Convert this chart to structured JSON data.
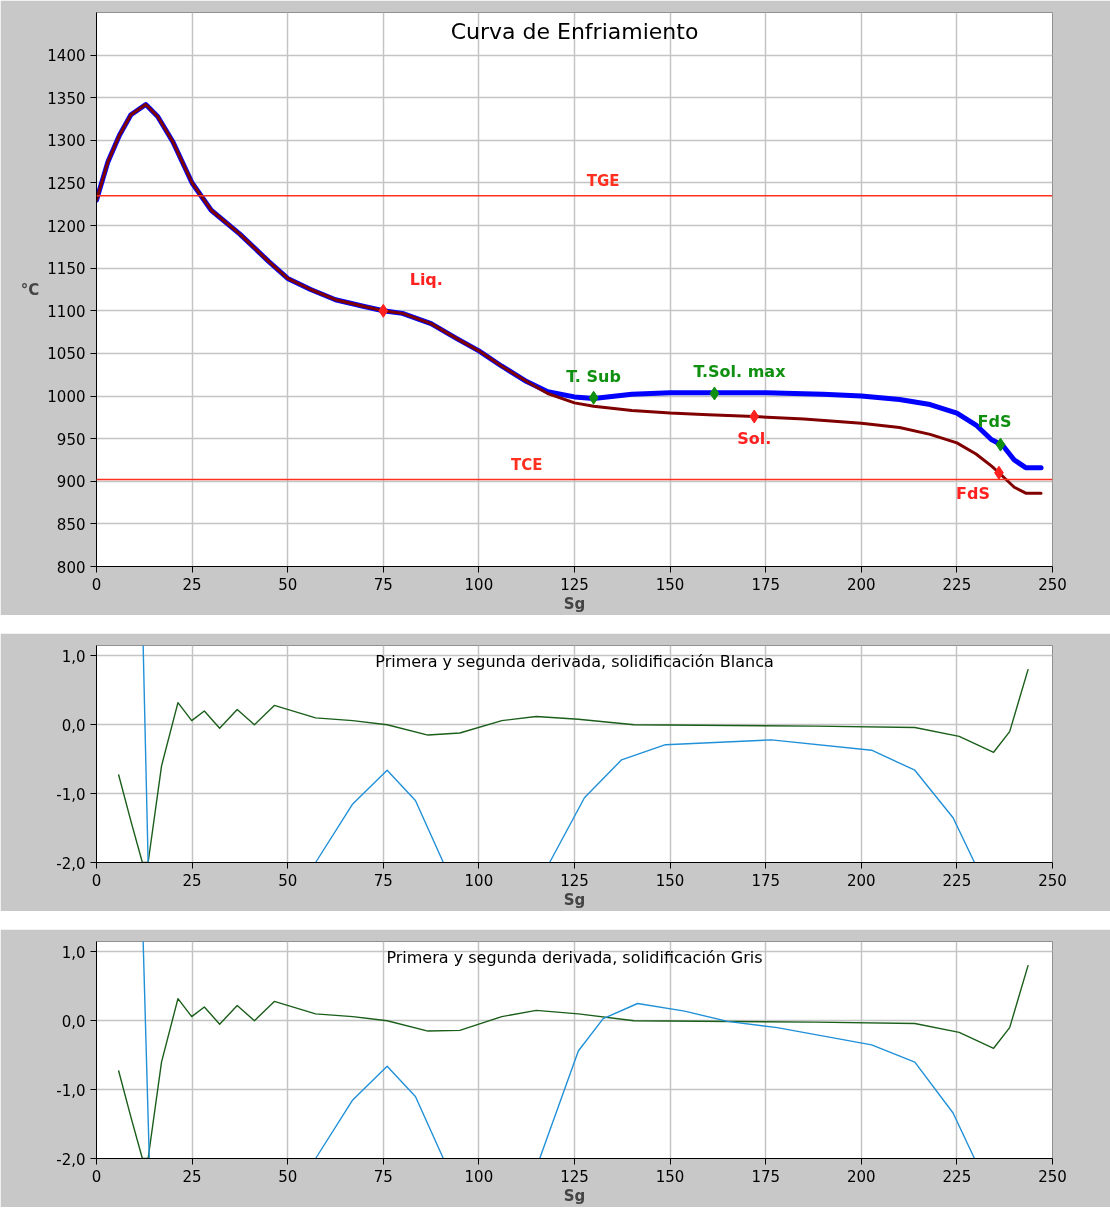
{
  "chart_data": [
    {
      "type": "line",
      "title": "Curva de Enfriamiento",
      "xlabel": "Sg",
      "ylabel": "°C",
      "xlim": [
        0,
        250
      ],
      "ylim": [
        800,
        1450
      ],
      "xticks": [
        0,
        25,
        50,
        75,
        100,
        125,
        150,
        175,
        200,
        225,
        250
      ],
      "yticks": [
        800,
        850,
        900,
        950,
        1000,
        1050,
        1100,
        1150,
        1200,
        1250,
        1300,
        1350,
        1400
      ],
      "grid": true,
      "series": [
        {
          "color": "#0000ff",
          "x": [
            0,
            3,
            6,
            9,
            12.9,
            16,
            20,
            25,
            30,
            37.5,
            45,
            50,
            56,
            62.5,
            70,
            75,
            80,
            87.5,
            94,
            100,
            106,
            112.5,
            118,
            125,
            130,
            140,
            150,
            162,
            175,
            190,
            200,
            210,
            218,
            225,
            230,
            234,
            237,
            240,
            243,
            247
          ],
          "values": [
            1230,
            1275,
            1306,
            1330,
            1342,
            1328,
            1298,
            1250,
            1218,
            1190,
            1158,
            1138,
            1125,
            1113,
            1105,
            1100,
            1097,
            1085,
            1068,
            1053,
            1035,
            1017,
            1005,
            999,
            997,
            1002,
            1004,
            1004,
            1004,
            1002,
            1000,
            996,
            990,
            980,
            966,
            949,
            942,
            925,
            916,
            916
          ]
        },
        {
          "color": "#800000",
          "x": [
            0,
            3,
            6,
            9,
            12.9,
            16,
            20,
            25,
            30,
            37.5,
            45,
            50,
            56,
            62.5,
            70,
            75,
            80,
            87.5,
            94,
            100,
            106,
            112.5,
            118,
            125,
            130,
            140,
            150,
            160,
            172,
            185,
            200,
            210,
            218,
            225,
            230,
            234,
            236,
            240,
            243,
            247
          ],
          "values": [
            1230,
            1275,
            1306,
            1330,
            1342,
            1328,
            1298,
            1250,
            1218,
            1190,
            1158,
            1138,
            1125,
            1113,
            1105,
            1100,
            1097,
            1085,
            1068,
            1053,
            1035,
            1017,
            1003,
            992,
            988,
            983,
            980,
            978,
            976,
            973,
            968,
            963,
            955,
            945,
            932,
            918,
            910,
            893,
            886,
            886
          ]
        },
        {
          "type": "scatter",
          "color": "#ff2020",
          "marker": "diamond",
          "x": [
            75,
            172,
            236
          ],
          "values": [
            1100,
            976,
            910
          ],
          "value_labels": [
            "Liq.",
            "Sol.",
            "FdS"
          ]
        },
        {
          "type": "scatter",
          "color": "#109010",
          "marker": "diamond",
          "x": [
            130,
            161.6,
            236.4
          ],
          "values": [
            998,
            1003,
            943
          ],
          "value_labels": [
            "T. Sub",
            "T.Sol. max",
            "FdS"
          ]
        }
      ],
      "ref_lines": [
        {
          "axis": "y",
          "value": 1235,
          "label": "TGE",
          "color": "#ff3020"
        },
        {
          "axis": "y",
          "value": 902,
          "label": "TCE",
          "color": "#ff3020"
        }
      ]
    },
    {
      "type": "line",
      "title": "Primera y segunda derivada, solidificación Blanca",
      "xlabel": "Sg",
      "xlim": [
        0,
        250
      ],
      "ylim": [
        -2,
        1.15
      ],
      "xticks": [
        0,
        25,
        50,
        75,
        100,
        125,
        150,
        175,
        200,
        225,
        250
      ],
      "yticks": [
        {
          "value": -2,
          "label": "-2,0"
        },
        {
          "value": -1,
          "label": "-1,0"
        },
        {
          "value": 0,
          "label": "0,0"
        },
        {
          "value": 1,
          "label": "1,0"
        }
      ],
      "grid": true,
      "series": [
        {
          "color": "#1a5e1a",
          "x": [
            5.8,
            9,
            12,
            13.5,
            17,
            21.3,
            24.9,
            28.2,
            32.2,
            36.8,
            41.3,
            46.5,
            57.3,
            67,
            76,
            86.7,
            95,
            106,
            115,
            126,
            140.6,
            188,
            214,
            225.6,
            234.6,
            238.8,
            243.6
          ],
          "values": [
            -0.73,
            -1.4,
            -2.0,
            -2.0,
            -0.6,
            0.32,
            0.06,
            0.2,
            -0.05,
            0.22,
            0.0,
            0.28,
            0.1,
            0.06,
            0.0,
            -0.15,
            -0.12,
            0.06,
            0.12,
            0.08,
            0.0,
            -0.02,
            -0.04,
            -0.17,
            -0.4,
            -0.1,
            0.8
          ]
        },
        {
          "color": "#2090d8",
          "x": [
            12.2,
            13.5,
            35,
            57.3,
            67,
            76,
            83.4,
            90.7,
            104,
            118.5,
            127.6,
            137.3,
            148.8,
            176.5,
            202.7,
            214,
            224,
            229.6
          ],
          "values": [
            1.15,
            -2.0,
            null,
            -2.0,
            -1.15,
            -0.66,
            -1.1,
            -2.0,
            null,
            -2.0,
            -1.06,
            -0.51,
            -0.29,
            -0.22,
            -0.37,
            -0.66,
            -1.35,
            -2.0
          ]
        }
      ]
    },
    {
      "type": "line",
      "title": "Primera y segunda derivada, solidificación Gris",
      "xlabel": "Sg",
      "xlim": [
        0,
        250
      ],
      "ylim": [
        -2,
        1.15
      ],
      "xticks": [
        0,
        25,
        50,
        75,
        100,
        125,
        150,
        175,
        200,
        225,
        250
      ],
      "yticks": [
        {
          "value": -2,
          "label": "-2,0"
        },
        {
          "value": -1,
          "label": "-1,0"
        },
        {
          "value": 0,
          "label": "0,0"
        },
        {
          "value": 1,
          "label": "1,0"
        }
      ],
      "grid": true,
      "series": [
        {
          "color": "#1a5e1a",
          "x": [
            5.8,
            9,
            12,
            13.5,
            17,
            21.3,
            24.9,
            28.2,
            32.2,
            36.8,
            41.3,
            46.5,
            57.3,
            67,
            76,
            86.7,
            95,
            106,
            115,
            126,
            140.6,
            188,
            214,
            225.6,
            234.6,
            238.8,
            243.6
          ],
          "values": [
            -0.73,
            -1.4,
            -2.0,
            -2.0,
            -0.6,
            0.32,
            0.06,
            0.2,
            -0.05,
            0.22,
            0.0,
            0.28,
            0.1,
            0.06,
            0.0,
            -0.15,
            -0.14,
            0.06,
            0.15,
            0.1,
            0.0,
            -0.02,
            -0.04,
            -0.17,
            -0.4,
            -0.1,
            0.8
          ]
        },
        {
          "color": "#2090d8",
          "x": [
            12.2,
            13.8,
            35,
            57.3,
            67,
            76,
            83.4,
            90.7,
            104,
            115.9,
            126,
            132.5,
            141.5,
            153.8,
            165,
            178,
            202.7,
            214,
            224,
            229.6
          ],
          "values": [
            1.15,
            -2.0,
            null,
            -2.0,
            -1.15,
            -0.66,
            -1.1,
            -2.0,
            null,
            -2.0,
            -0.44,
            0.03,
            0.25,
            0.14,
            -0.01,
            -0.1,
            -0.35,
            -0.6,
            -1.34,
            -2.0
          ]
        }
      ]
    }
  ]
}
